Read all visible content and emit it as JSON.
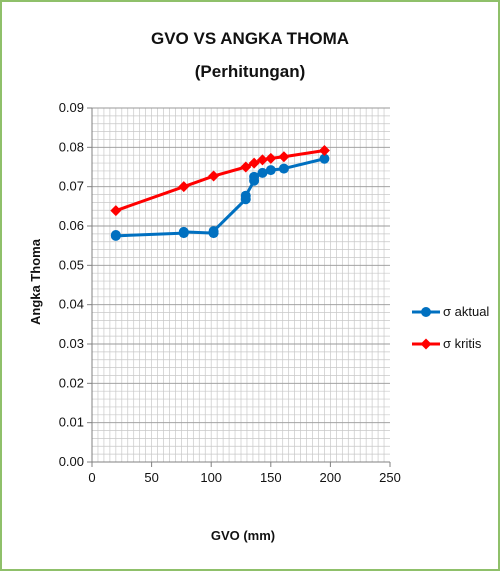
{
  "chart_data": {
    "type": "line",
    "title": "GVO VS ANGKA THOMA",
    "subtitle": "(Perhitungan)",
    "xlabel": "GVO (mm)",
    "ylabel": "Angka Thoma",
    "xlim": [
      0,
      250
    ],
    "ylim": [
      0,
      0.09
    ],
    "x_ticks": [
      "0",
      "50",
      "100",
      "150",
      "200",
      "250"
    ],
    "y_ticks": [
      "0.00",
      "0.01",
      "0.02",
      "0.03",
      "0.04",
      "0.05",
      "0.06",
      "0.07",
      "0.08",
      "0.09"
    ],
    "grid": true,
    "legend_position": "right",
    "series": [
      {
        "name": "σ aktual",
        "color": "#0070c0",
        "marker": "circle",
        "points": [
          {
            "x": 20,
            "y": 0.0577
          },
          {
            "x": 20,
            "y": 0.0575
          },
          {
            "x": 77,
            "y": 0.0582
          },
          {
            "x": 77,
            "y": 0.0585
          },
          {
            "x": 102,
            "y": 0.0582
          },
          {
            "x": 102,
            "y": 0.0587
          },
          {
            "x": 129,
            "y": 0.0668
          },
          {
            "x": 129,
            "y": 0.0677
          },
          {
            "x": 136,
            "y": 0.0715
          },
          {
            "x": 136,
            "y": 0.0725
          },
          {
            "x": 143,
            "y": 0.0735
          },
          {
            "x": 150,
            "y": 0.0742
          },
          {
            "x": 161,
            "y": 0.0746
          },
          {
            "x": 195,
            "y": 0.0771
          }
        ]
      },
      {
        "name": "σ kritis",
        "color": "#ff0000",
        "marker": "diamond",
        "points": [
          {
            "x": 20,
            "y": 0.0639
          },
          {
            "x": 77,
            "y": 0.07
          },
          {
            "x": 102,
            "y": 0.0727
          },
          {
            "x": 129,
            "y": 0.075
          },
          {
            "x": 136,
            "y": 0.076
          },
          {
            "x": 143,
            "y": 0.0768
          },
          {
            "x": 150,
            "y": 0.0772
          },
          {
            "x": 161,
            "y": 0.0776
          },
          {
            "x": 195,
            "y": 0.0792
          }
        ]
      }
    ]
  }
}
